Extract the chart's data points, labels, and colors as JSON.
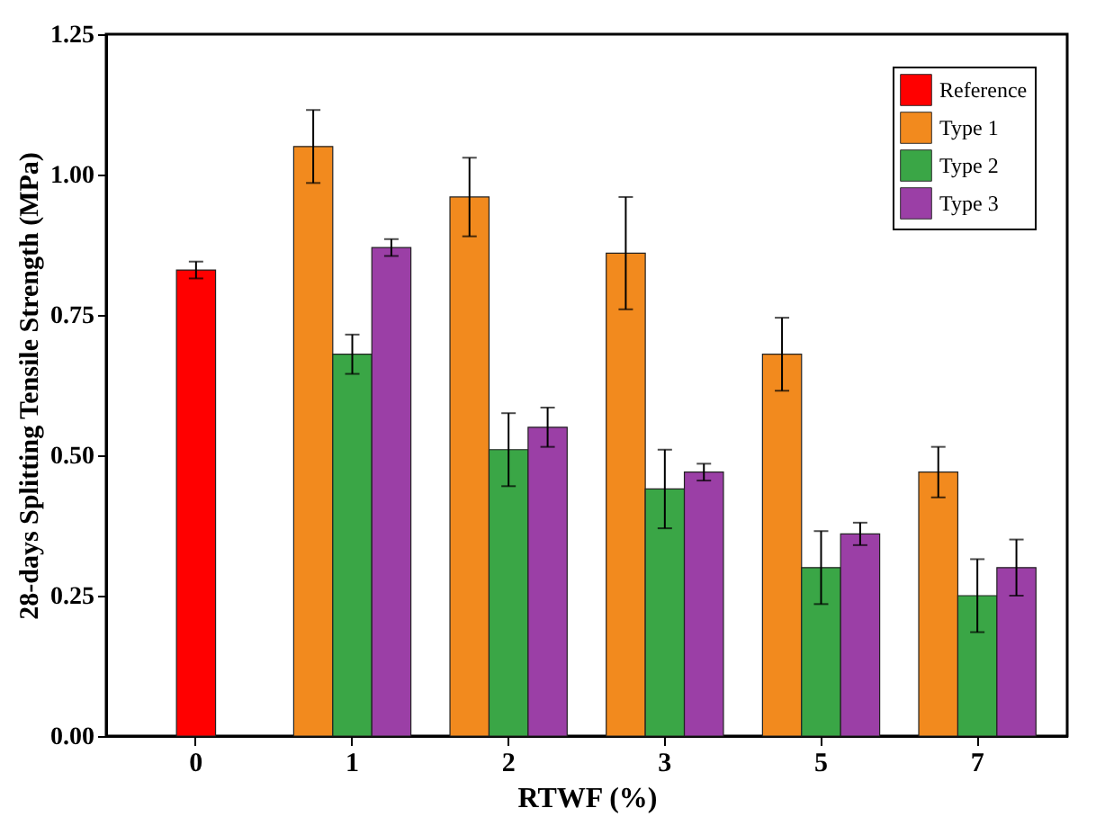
{
  "chart_data": {
    "type": "bar",
    "xlabel": "RTWF (%)",
    "ylabel": "28-days Splitting Tensile Strength (MPa)",
    "categories": [
      "0",
      "1",
      "2",
      "3",
      "5",
      "7"
    ],
    "ylim": [
      0,
      1.25
    ],
    "yticks": [
      {
        "value": 0,
        "label": "0.00"
      },
      {
        "value": 0.25,
        "label": "0.25"
      },
      {
        "value": 0.5,
        "label": "0.50"
      },
      {
        "value": 0.75,
        "label": "0.75"
      },
      {
        "value": 1,
        "label": "1.00"
      },
      {
        "value": 1.25,
        "label": "1.25"
      }
    ],
    "grid": false,
    "legend": "top right",
    "series": [
      {
        "name": "Reference",
        "color": "#ff0000",
        "values": [
          0.83,
          null,
          null,
          null,
          null,
          null
        ],
        "errors": [
          0.015,
          null,
          null,
          null,
          null,
          null
        ]
      },
      {
        "name": "Type 1",
        "color": "#f28a1e",
        "values": [
          null,
          1.05,
          0.96,
          0.86,
          0.68,
          0.47
        ],
        "errors": [
          null,
          0.065,
          0.07,
          0.1,
          0.065,
          0.045
        ]
      },
      {
        "name": "Type 2",
        "color": "#3aa646",
        "values": [
          null,
          0.68,
          0.51,
          0.44,
          0.3,
          0.25
        ],
        "errors": [
          null,
          0.035,
          0.065,
          0.07,
          0.065,
          0.065
        ]
      },
      {
        "name": "Type 3",
        "color": "#9b3fa6",
        "values": [
          null,
          0.87,
          0.55,
          0.47,
          0.36,
          0.3
        ],
        "errors": [
          null,
          0.015,
          0.035,
          0.015,
          0.02,
          0.05
        ]
      }
    ]
  }
}
